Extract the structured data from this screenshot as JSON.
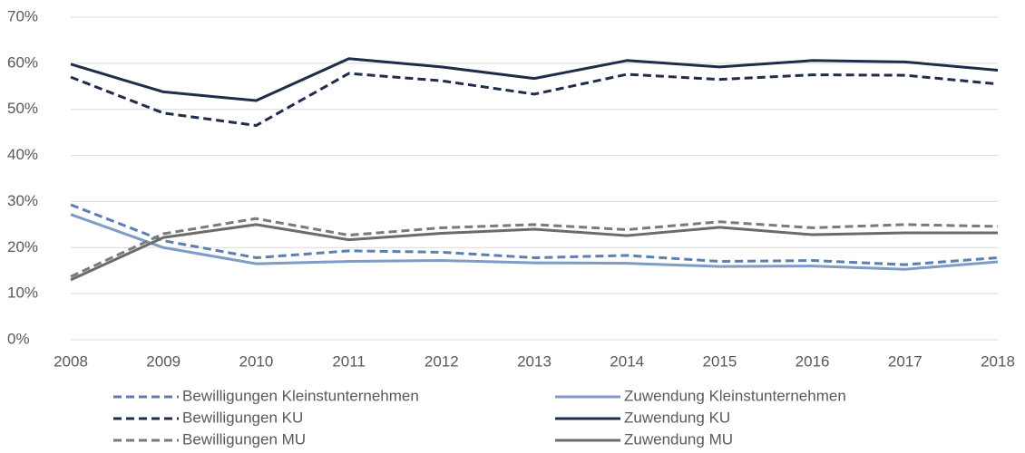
{
  "chart_data": {
    "type": "line",
    "x": [
      2008,
      2009,
      2010,
      2011,
      2012,
      2013,
      2014,
      2015,
      2016,
      2017,
      2018
    ],
    "xlim": [
      2008,
      2018
    ],
    "xticks": [
      2008,
      2009,
      2010,
      2011,
      2012,
      2013,
      2014,
      2015,
      2016,
      2017,
      2018
    ],
    "ylim": [
      0,
      70
    ],
    "yticks": [
      {
        "value": 0,
        "label": "0%"
      },
      {
        "value": 10,
        "label": "10%"
      },
      {
        "value": 20,
        "label": "20%"
      },
      {
        "value": 30,
        "label": "30%"
      },
      {
        "value": 40,
        "label": "40%"
      },
      {
        "value": 50,
        "label": "50%"
      },
      {
        "value": 60,
        "label": "60%"
      },
      {
        "value": 70,
        "label": "70%"
      }
    ],
    "grid": true,
    "legend": "bottom",
    "series": [
      {
        "name": "Bewilligungen Kleinstunternehmen",
        "color": "#5b7fb0",
        "linestyle": "dashed",
        "values": [
          29.3,
          21.5,
          17.8,
          19.3,
          19.0,
          17.8,
          18.3,
          17.0,
          17.2,
          16.3,
          17.8
        ]
      },
      {
        "name": "Zuwendung Kleinstunternehmen",
        "color": "#7f9cc6",
        "linestyle": "solid",
        "values": [
          27.2,
          20.0,
          16.5,
          17.0,
          17.2,
          16.7,
          16.6,
          15.9,
          16.0,
          15.3,
          16.9
        ]
      },
      {
        "name": "Bewilligungen KU",
        "color": "#1f2d4a",
        "linestyle": "dashed",
        "values": [
          57.0,
          49.2,
          46.5,
          57.8,
          56.2,
          53.3,
          57.6,
          56.5,
          57.5,
          57.4,
          55.5
        ]
      },
      {
        "name": "Zuwendung KU",
        "color": "#1f2d4a",
        "linestyle": "solid",
        "values": [
          59.8,
          53.8,
          51.9,
          61.0,
          59.2,
          56.7,
          60.6,
          59.2,
          60.6,
          60.3,
          58.5
        ]
      },
      {
        "name": "Bewilligungen MU",
        "color": "#7a7a7a",
        "linestyle": "dashed",
        "values": [
          13.7,
          23.0,
          26.3,
          22.7,
          24.3,
          25.0,
          23.9,
          25.6,
          24.3,
          25.0,
          24.6
        ]
      },
      {
        "name": "Zuwendung MU",
        "color": "#6b6b6b",
        "linestyle": "solid",
        "values": [
          13.0,
          22.2,
          25.0,
          21.7,
          23.1,
          24.0,
          22.6,
          24.4,
          22.8,
          23.2,
          23.2
        ]
      }
    ]
  }
}
